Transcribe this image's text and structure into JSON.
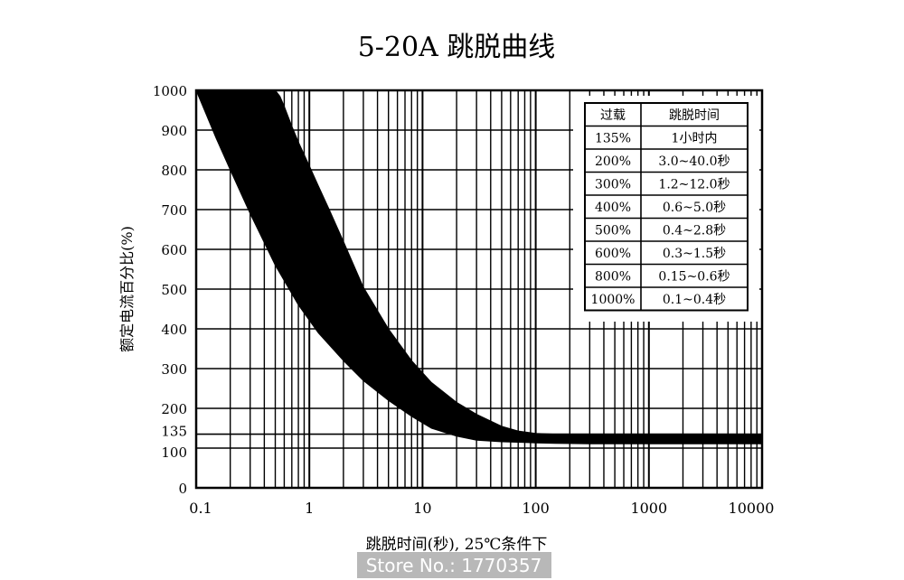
{
  "chart_data": {
    "type": "area",
    "title": "5-20A 跳脱曲线",
    "xlabel": "跳脱时间(秒), 25℃条件下",
    "ylabel": "额定电流百分比(%)",
    "x_scale": "log",
    "xlim": [
      0.1,
      10000
    ],
    "ylim": [
      0,
      1000
    ],
    "x_ticks": [
      "0.1",
      "1",
      "10",
      "100",
      "1000",
      "10000"
    ],
    "y_ticks": [
      "0",
      "100",
      "135",
      "200",
      "300",
      "400",
      "500",
      "600",
      "700",
      "800",
      "900",
      "1000"
    ],
    "y_tick_values": [
      0,
      100,
      135,
      200,
      300,
      400,
      500,
      600,
      700,
      800,
      900,
      1000
    ],
    "grid": true,
    "band_color": "#000000",
    "series": [
      {
        "x": [
          0.1,
          0.15,
          0.2,
          0.3,
          0.5,
          0.8,
          1.2,
          2,
          3,
          5,
          8,
          12,
          20,
          30,
          50,
          80,
          100,
          150,
          300,
          1000,
          3000,
          10000
        ],
        "y": [
          1000,
          880,
          800,
          690,
          560,
          460,
          390,
          320,
          270,
          220,
          180,
          150,
          130,
          120,
          116,
          114,
          113,
          112,
          111,
          111,
          111,
          111
        ]
      },
      {
        "x": [
          10000,
          3000,
          1000,
          300,
          150,
          100,
          70,
          50,
          30,
          20,
          12,
          8,
          5,
          3,
          2,
          1.5,
          1.2,
          1,
          0.8,
          0.7,
          0.6,
          0.55,
          0.5
        ],
        "y": [
          135,
          135,
          134,
          133,
          135,
          137,
          143,
          155,
          185,
          215,
          265,
          320,
          400,
          505,
          620,
          700,
          760,
          810,
          870,
          910,
          960,
          985,
          1000
        ]
      }
    ],
    "table": {
      "headers": [
        "过载",
        "跳脱时间"
      ],
      "rows": [
        [
          "135%",
          "1小时内"
        ],
        [
          "200%",
          "3.0~40.0秒"
        ],
        [
          "300%",
          "1.2~12.0秒"
        ],
        [
          "400%",
          "0.6~5.0秒"
        ],
        [
          "500%",
          "0.4~2.8秒"
        ],
        [
          "600%",
          "0.3~1.5秒"
        ],
        [
          "800%",
          "0.15~0.6秒"
        ],
        [
          "1000%",
          "0.1~0.4秒"
        ]
      ]
    }
  },
  "watermark": "Store No.: 1770357"
}
